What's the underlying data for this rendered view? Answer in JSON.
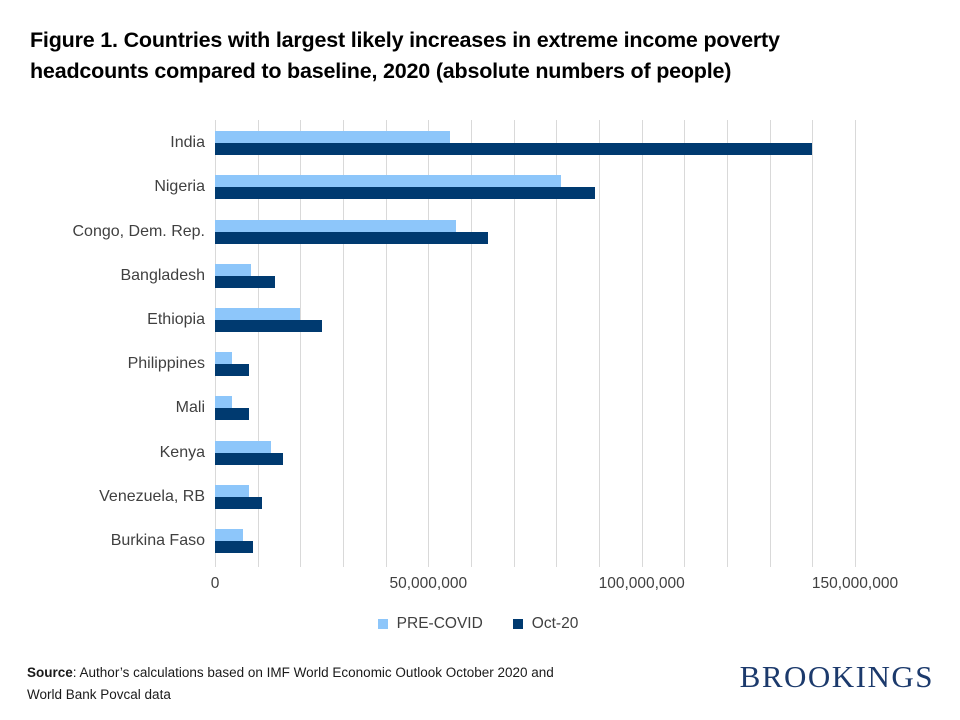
{
  "title": {
    "lines": [
      "Figure 1. Countries with largest likely increases in extreme income poverty",
      "headcounts compared to baseline, 2020 (absolute numbers of people)"
    ]
  },
  "chart_data": {
    "type": "bar",
    "orientation": "horizontal",
    "title": "Figure 1. Countries with largest likely increases in extreme income poverty headcounts compared to baseline, 2020 (absolute numbers of people)",
    "categories": [
      "India",
      "Nigeria",
      "Congo, Dem. Rep.",
      "Bangladesh",
      "Ethiopia",
      "Philippines",
      "Mali",
      "Kenya",
      "Venezuela, RB",
      "Burkina Faso"
    ],
    "series": [
      {
        "name": "PRE-COVID",
        "color": "#8dc6fa",
        "values": [
          55000000,
          81000000,
          56500000,
          8500000,
          20000000,
          4000000,
          4000000,
          13000000,
          8000000,
          6500000
        ]
      },
      {
        "name": "Oct-20",
        "color": "#003a70",
        "values": [
          140000000,
          89000000,
          64000000,
          14000000,
          25000000,
          8000000,
          8000000,
          16000000,
          11000000,
          9000000
        ]
      }
    ],
    "xlim": [
      0,
      150000000
    ],
    "grid_interval": 10000000,
    "grid": true,
    "legend_position": "bottom-center",
    "x_ticks": [
      {
        "value": 0,
        "label": "0"
      },
      {
        "value": 50000000,
        "label": "50,000,000"
      },
      {
        "value": 100000000,
        "label": "100,000,000"
      },
      {
        "value": 150000000,
        "label": "150,000,000"
      }
    ],
    "xlabel": "",
    "ylabel": ""
  },
  "source": {
    "label": "Source",
    "after_label": ": Author’s calculations based on IMF World Economic Outlook October 2020 and",
    "line2": "World Bank Povcal data"
  },
  "logo": {
    "text": "BROOKINGS"
  },
  "colors": {
    "pre_covid": "#8dc6fa",
    "oct_20": "#003a70",
    "gridline": "#d9d9d9",
    "axis_text": "#404040",
    "logo_navy": "#1c3a6c"
  }
}
